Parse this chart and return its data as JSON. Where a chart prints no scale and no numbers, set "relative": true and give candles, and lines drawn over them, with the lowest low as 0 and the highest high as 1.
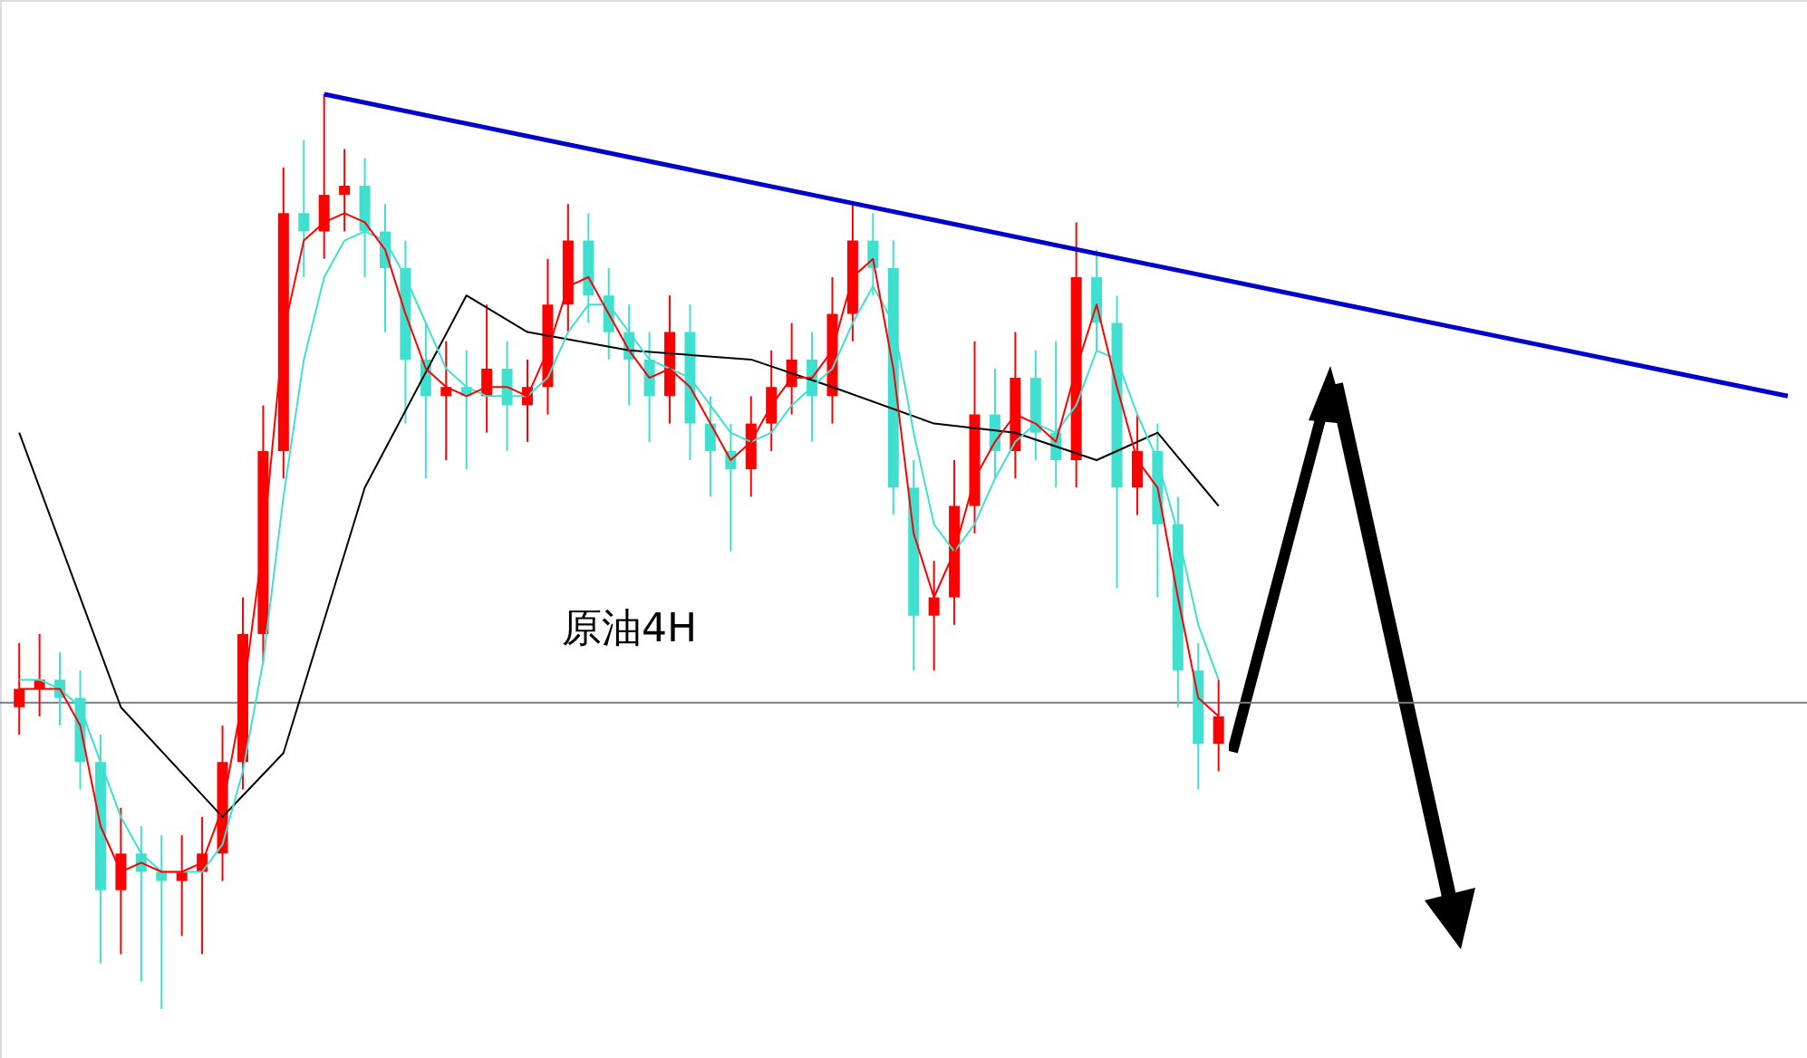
{
  "chart_data": {
    "type": "candlestick",
    "relative": true,
    "categories": [
      null,
      null,
      null,
      null,
      null,
      null,
      null,
      null,
      null,
      null,
      null,
      null,
      null,
      null,
      null,
      null,
      null,
      null,
      null,
      null,
      null,
      null,
      null,
      null,
      null,
      null,
      null,
      null,
      null,
      null,
      null,
      null,
      null,
      null,
      null,
      null,
      null,
      null,
      null,
      null,
      null,
      null,
      null,
      null,
      null,
      null,
      null,
      null,
      null,
      null,
      null,
      null,
      null,
      null,
      null,
      null,
      null,
      null,
      null,
      null,
      null,
      null,
      null,
      null,
      null,
      null,
      null,
      null,
      null,
      null,
      null,
      null,
      null,
      null,
      null,
      null,
      null,
      null,
      null,
      null,
      null,
      null,
      null,
      null,
      null,
      null,
      null,
      null
    ],
    "ohlc": [
      [
        0.33,
        0.4,
        0.3,
        0.35
      ],
      [
        0.35,
        0.41,
        0.32,
        0.36
      ],
      [
        0.36,
        0.39,
        0.31,
        0.34
      ],
      [
        0.34,
        0.37,
        0.24,
        0.27
      ],
      [
        0.27,
        0.3,
        0.05,
        0.13
      ],
      [
        0.13,
        0.22,
        0.06,
        0.17
      ],
      [
        0.17,
        0.2,
        0.03,
        0.15
      ],
      [
        0.15,
        0.19,
        0.0,
        0.14
      ],
      [
        0.14,
        0.19,
        0.08,
        0.15
      ],
      [
        0.15,
        0.21,
        0.06,
        0.17
      ],
      [
        0.17,
        0.31,
        0.14,
        0.27
      ],
      [
        0.27,
        0.45,
        0.24,
        0.41
      ],
      [
        0.41,
        0.66,
        0.38,
        0.61
      ],
      [
        0.61,
        0.92,
        0.58,
        0.87
      ],
      [
        0.87,
        0.95,
        0.8,
        0.85
      ],
      [
        0.85,
        1.0,
        0.82,
        0.89
      ],
      [
        0.89,
        0.94,
        0.85,
        0.9
      ],
      [
        0.9,
        0.93,
        0.8,
        0.85
      ],
      [
        0.85,
        0.88,
        0.74,
        0.81
      ],
      [
        0.81,
        0.84,
        0.64,
        0.71
      ],
      [
        0.71,
        0.75,
        0.58,
        0.67
      ],
      [
        0.67,
        0.73,
        0.6,
        0.68
      ],
      [
        0.68,
        0.72,
        0.59,
        0.67
      ],
      [
        0.67,
        0.77,
        0.63,
        0.7
      ],
      [
        0.7,
        0.73,
        0.61,
        0.66
      ],
      [
        0.66,
        0.71,
        0.62,
        0.68
      ],
      [
        0.68,
        0.82,
        0.65,
        0.77
      ],
      [
        0.77,
        0.88,
        0.74,
        0.84
      ],
      [
        0.84,
        0.87,
        0.75,
        0.78
      ],
      [
        0.78,
        0.81,
        0.71,
        0.74
      ],
      [
        0.74,
        0.77,
        0.66,
        0.71
      ],
      [
        0.71,
        0.74,
        0.62,
        0.67
      ],
      [
        0.67,
        0.78,
        0.64,
        0.74
      ],
      [
        0.74,
        0.77,
        0.6,
        0.64
      ],
      [
        0.64,
        0.67,
        0.56,
        0.61
      ],
      [
        0.61,
        0.64,
        0.5,
        0.59
      ],
      [
        0.59,
        0.67,
        0.56,
        0.64
      ],
      [
        0.64,
        0.72,
        0.61,
        0.68
      ],
      [
        0.68,
        0.75,
        0.65,
        0.71
      ],
      [
        0.71,
        0.74,
        0.62,
        0.67
      ],
      [
        0.67,
        0.8,
        0.64,
        0.76
      ],
      [
        0.76,
        0.88,
        0.73,
        0.84
      ],
      [
        0.84,
        0.87,
        0.78,
        0.81
      ],
      [
        0.81,
        0.84,
        0.54,
        0.57
      ],
      [
        0.57,
        0.6,
        0.37,
        0.43
      ],
      [
        0.43,
        0.49,
        0.37,
        0.45
      ],
      [
        0.45,
        0.6,
        0.42,
        0.55
      ],
      [
        0.55,
        0.73,
        0.52,
        0.65
      ],
      [
        0.65,
        0.7,
        0.58,
        0.61
      ],
      [
        0.61,
        0.74,
        0.58,
        0.69
      ],
      [
        0.69,
        0.72,
        0.6,
        0.63
      ],
      [
        0.63,
        0.73,
        0.57,
        0.6
      ],
      [
        0.6,
        0.86,
        0.57,
        0.8
      ],
      [
        0.8,
        0.83,
        0.72,
        0.75
      ],
      [
        0.75,
        0.78,
        0.46,
        0.57
      ],
      [
        0.57,
        0.65,
        0.54,
        0.61
      ],
      [
        0.61,
        0.64,
        0.45,
        0.53
      ],
      [
        0.53,
        0.56,
        0.33,
        0.37
      ],
      [
        0.37,
        0.4,
        0.24,
        0.29
      ],
      [
        0.29,
        0.36,
        0.26,
        0.32
      ],
      null,
      null,
      null,
      null,
      null,
      null,
      null,
      null,
      null,
      null,
      null,
      null,
      null,
      null,
      null,
      null,
      null,
      null,
      null,
      null,
      null,
      null,
      null,
      null,
      null,
      null,
      null,
      null
    ],
    "colors": [
      "#ff0000",
      "#ff0000",
      "#40e0d0",
      "#40e0d0",
      "#40e0d0",
      "#ff0000",
      "#40e0d0",
      "#40e0d0",
      "#ff0000",
      "#ff0000",
      "#ff0000",
      "#ff0000",
      "#ff0000",
      "#ff0000",
      "#40e0d0",
      "#ff0000",
      "#ff0000",
      "#40e0d0",
      "#40e0d0",
      "#40e0d0",
      "#40e0d0",
      "#ff0000",
      "#40e0d0",
      "#ff0000",
      "#40e0d0",
      "#ff0000",
      "#ff0000",
      "#ff0000",
      "#40e0d0",
      "#40e0d0",
      "#40e0d0",
      "#40e0d0",
      "#ff0000",
      "#40e0d0",
      "#40e0d0",
      "#40e0d0",
      "#ff0000",
      "#ff0000",
      "#ff0000",
      "#40e0d0",
      "#ff0000",
      "#ff0000",
      "#40e0d0",
      "#40e0d0",
      "#40e0d0",
      "#ff0000",
      "#ff0000",
      "#ff0000",
      "#40e0d0",
      "#ff0000",
      "#40e0d0",
      "#40e0d0",
      "#ff0000",
      "#40e0d0",
      "#40e0d0",
      "#ff0000",
      "#40e0d0",
      "#40e0d0",
      "#40e0d0",
      "#ff0000",
      null,
      null,
      null,
      null,
      null,
      null,
      null,
      null,
      null,
      null,
      null,
      null,
      null,
      null,
      null,
      null,
      null,
      null,
      null,
      null,
      null,
      null,
      null,
      null,
      null,
      null,
      null,
      null
    ],
    "series": [
      {
        "type": "line",
        "color": "#000000",
        "values": [
          0.63,
          null,
          null,
          null,
          null,
          0.33,
          null,
          null,
          null,
          null,
          0.21,
          null,
          null,
          0.28,
          null,
          null,
          null,
          0.57,
          null,
          null,
          null,
          null,
          0.78,
          null,
          null,
          0.74,
          null,
          null,
          null,
          null,
          0.72,
          null,
          null,
          null,
          null,
          null,
          0.71,
          null,
          null,
          null,
          0.68,
          null,
          null,
          null,
          null,
          0.64,
          null,
          null,
          null,
          0.63,
          null,
          null,
          null,
          0.6,
          null,
          null,
          0.63,
          null,
          null,
          0.55,
          null,
          null,
          null,
          null,
          null,
          null,
          null,
          null,
          null,
          null,
          null,
          null,
          null,
          null,
          null,
          null,
          null,
          null,
          null,
          null,
          null,
          null,
          null,
          null,
          null,
          null,
          null,
          null
        ]
      },
      {
        "type": "line",
        "color": "#40e0d0",
        "values": [
          0.36,
          0.36,
          0.35,
          0.33,
          0.27,
          0.21,
          0.17,
          0.15,
          0.15,
          0.15,
          0.18,
          0.26,
          0.38,
          0.56,
          0.71,
          0.8,
          0.84,
          0.85,
          0.84,
          0.8,
          0.75,
          0.7,
          0.68,
          0.67,
          0.67,
          0.67,
          0.69,
          0.74,
          0.77,
          0.77,
          0.74,
          0.71,
          0.7,
          0.69,
          0.66,
          0.63,
          0.62,
          0.63,
          0.66,
          0.68,
          0.7,
          0.75,
          0.79,
          0.75,
          0.63,
          0.53,
          0.5,
          0.53,
          0.58,
          0.62,
          0.64,
          0.63,
          0.66,
          0.72,
          0.71,
          0.65,
          0.6,
          0.52,
          0.42,
          0.36,
          null,
          null,
          null,
          null,
          null,
          null,
          null,
          null,
          null,
          null,
          null,
          null,
          null,
          null,
          null,
          null,
          null,
          null,
          null,
          null,
          null,
          null,
          null,
          null,
          null,
          null,
          null,
          null
        ]
      },
      {
        "type": "line",
        "color": "#ff0000",
        "values": [
          0.35,
          0.35,
          0.35,
          0.31,
          0.2,
          0.15,
          0.16,
          0.15,
          0.15,
          0.16,
          0.22,
          0.34,
          0.51,
          0.74,
          0.84,
          0.86,
          0.87,
          0.86,
          0.83,
          0.76,
          0.7,
          0.68,
          0.67,
          0.68,
          0.68,
          0.67,
          0.72,
          0.79,
          0.8,
          0.76,
          0.72,
          0.69,
          0.7,
          0.68,
          0.64,
          0.6,
          0.62,
          0.66,
          0.69,
          0.69,
          0.72,
          0.8,
          0.82,
          0.7,
          0.52,
          0.45,
          0.5,
          0.58,
          0.62,
          0.65,
          0.64,
          0.62,
          0.7,
          0.77,
          0.68,
          0.6,
          0.57,
          0.45,
          0.34,
          0.32,
          null,
          null,
          null,
          null,
          null,
          null,
          null,
          null,
          null,
          null,
          null,
          null,
          null,
          null,
          null,
          null,
          null,
          null,
          null,
          null,
          null,
          null,
          null,
          null,
          null,
          null,
          null,
          null
        ]
      },
      {
        "type": "line",
        "color": "#0000cc",
        "values": [
          null,
          null,
          null,
          null,
          null,
          null,
          null,
          null,
          null,
          null,
          null,
          null,
          null,
          null,
          null,
          1.0,
          null,
          null,
          null,
          null,
          null,
          null,
          null,
          null,
          null,
          null,
          null,
          null,
          null,
          null,
          null,
          null,
          null,
          null,
          null,
          null,
          null,
          null,
          null,
          null,
          null,
          null,
          null,
          null,
          null,
          null,
          null,
          null,
          null,
          null,
          null,
          null,
          null,
          null,
          null,
          null,
          null,
          null,
          null,
          null,
          null,
          null,
          null,
          null,
          null,
          null,
          null,
          null,
          null,
          null,
          null,
          null,
          null,
          null,
          null,
          null,
          null,
          null,
          null,
          null,
          null,
          null,
          null,
          null,
          null,
          null,
          null,
          0.67
        ]
      }
    ],
    "ref_lines": [
      {
        "axis": "y",
        "value": 0.335,
        "color": "#708090"
      }
    ],
    "annotations": [
      "原油4H"
    ]
  }
}
